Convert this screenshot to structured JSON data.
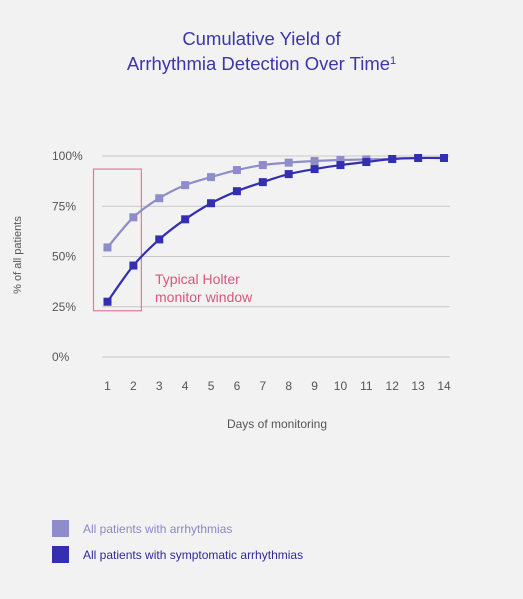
{
  "chart_data": {
    "type": "line",
    "title_line1": "Cumulative Yield of",
    "title_line2": "Arrhythmia Detection Over Time",
    "title_superscript": "1",
    "xlabel": "Days of monitoring",
    "ylabel": "% of all patients",
    "x": [
      1,
      2,
      3,
      4,
      5,
      6,
      7,
      8,
      9,
      10,
      11,
      12,
      13,
      14
    ],
    "x_tick_labels": [
      "1",
      "2",
      "3",
      "4",
      "5",
      "6",
      "7",
      "8",
      "9",
      "10",
      "11",
      "12",
      "13",
      "14"
    ],
    "y_tick_labels": [
      "0%",
      "25%",
      "50%",
      "75%",
      "100%"
    ],
    "y_ticks": [
      0,
      25,
      50,
      75,
      100
    ],
    "ylim": [
      0,
      100
    ],
    "grid": "horizontal",
    "series": [
      {
        "name": "All patients with arrhythmias",
        "color": "#8e8cc9",
        "x": [
          1,
          2,
          3,
          4,
          5,
          6,
          7,
          8,
          9,
          10,
          11,
          12
        ],
        "values": [
          54.5,
          69.5,
          79,
          85.5,
          89.5,
          93,
          95.5,
          96.7,
          97.5,
          98,
          98.3,
          98.5
        ]
      },
      {
        "name": "All patients with symptomatic arrhythmias",
        "color": "#332fb0",
        "x": [
          1,
          2,
          3,
          4,
          5,
          6,
          7,
          8,
          9,
          10,
          11,
          12,
          13,
          14
        ],
        "values": [
          27.5,
          45.5,
          58.5,
          68.5,
          76.5,
          82.5,
          87,
          91,
          93.5,
          95.5,
          97,
          98.5,
          99,
          99
        ]
      }
    ],
    "annotation": {
      "line1": "Typical Holter",
      "line2": "monitor window",
      "color": "#d8567a",
      "box_x_range": [
        1,
        2
      ]
    }
  }
}
